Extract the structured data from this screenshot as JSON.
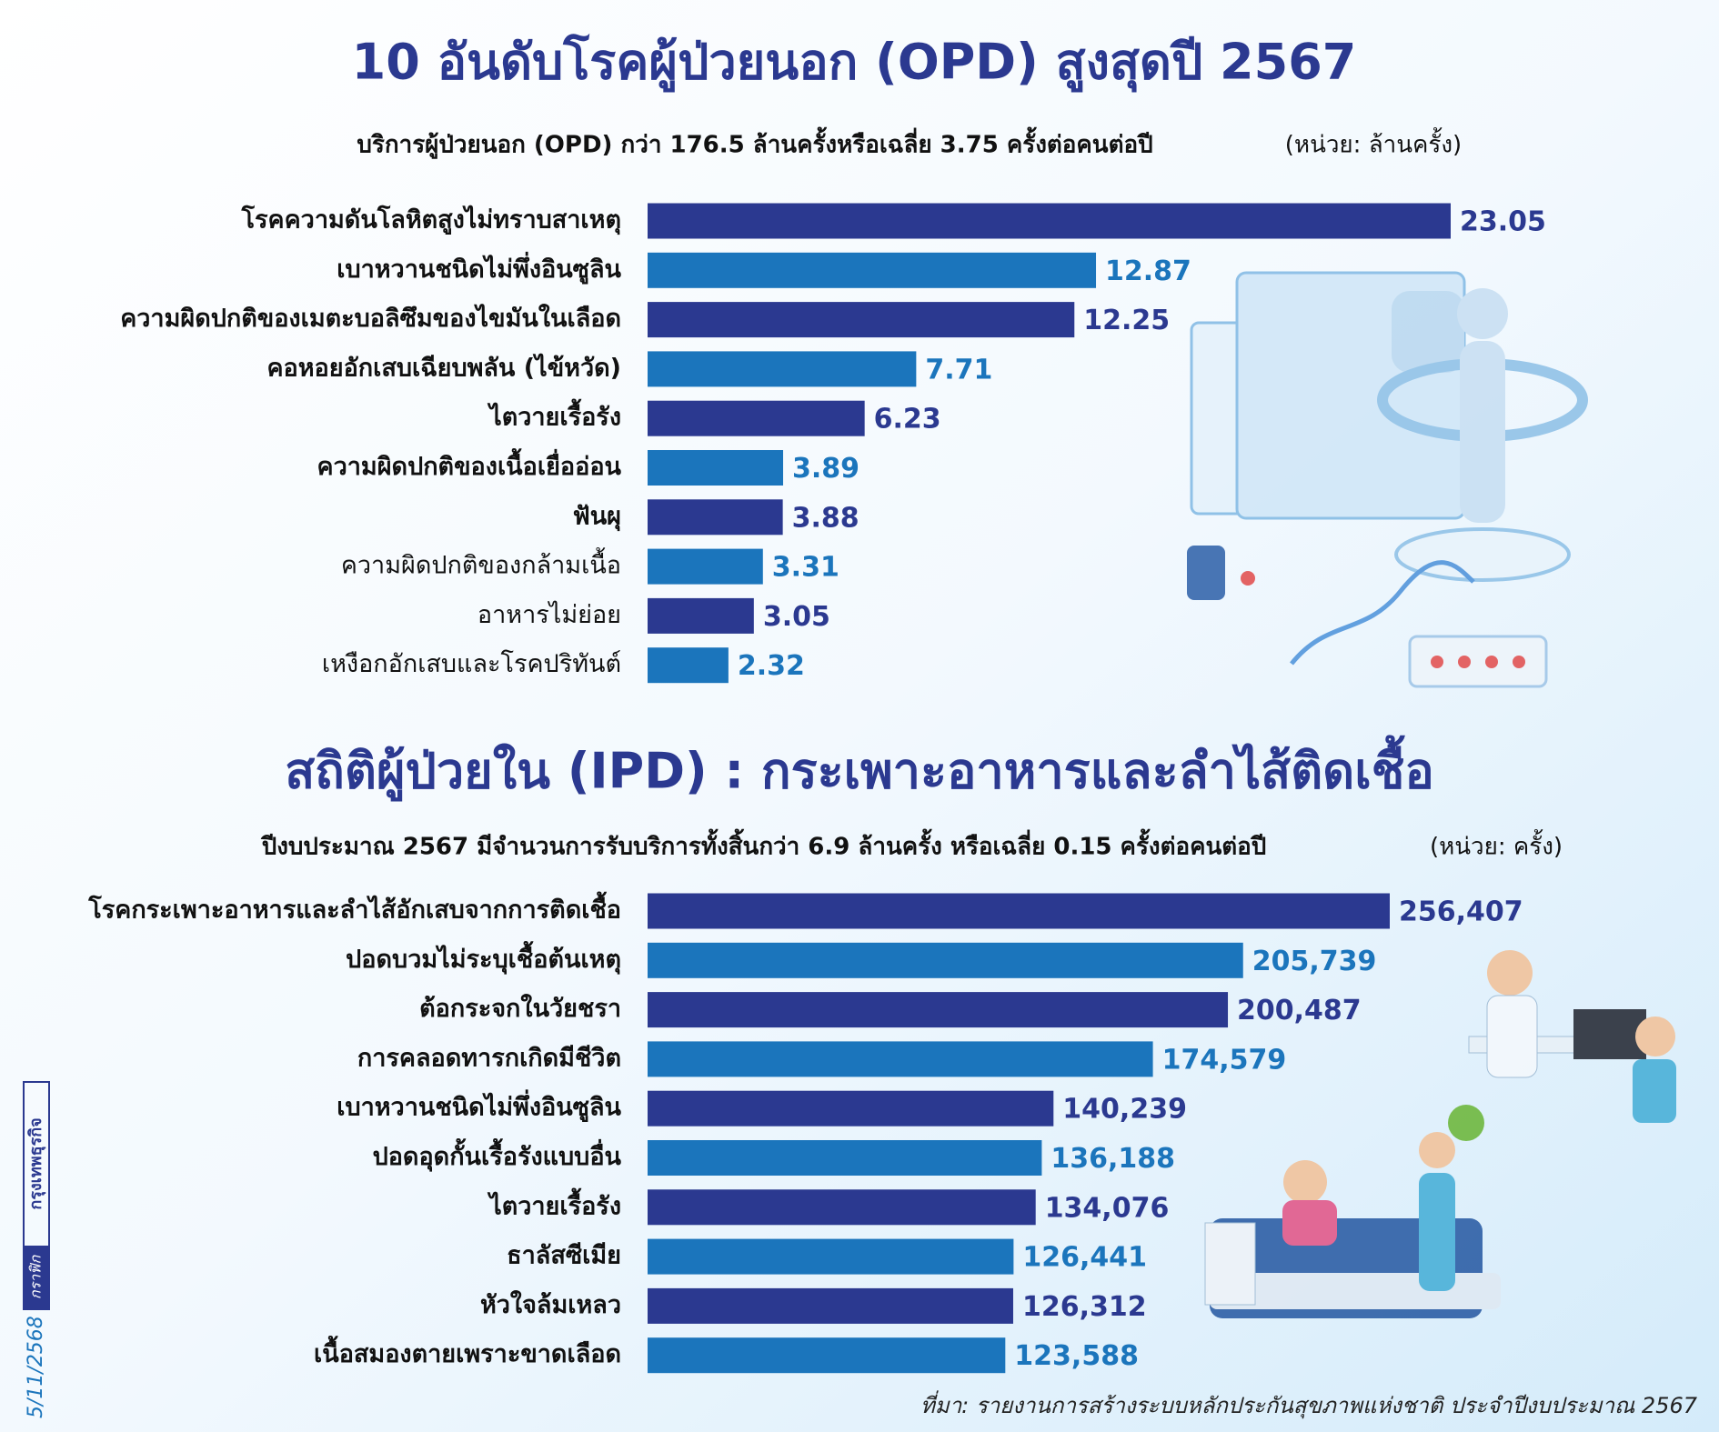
{
  "chart_data": [
    {
      "type": "barh",
      "title": "10 อันดับโรคผู้ป่วยนอก (OPD) สูงสุดปี 2567",
      "subtitle": "บริการผู้ป่วยนอก (OPD) กว่า 176.5 ล้านครั้งหรือเฉลี่ย 3.75 ครั้งต่อคนต่อปี",
      "unit": "(หน่วย: ล้านครั้ง)",
      "categories": [
        "โรคความดันโลหิตสูงไม่ทราบสาเหตุ",
        "เบาหวานชนิดไม่พึ่งอินซูลิน",
        "ความผิดปกติของเมตะบอลิซึมของไขมันในเลือด",
        "คอหอยอักเสบเฉียบพลัน (ไข้หวัด)",
        "ไตวายเรื้อรัง",
        "ความผิดปกติของเนื้อเยื่ออ่อน",
        "ฟันผุ",
        "ความผิดปกติของกล้ามเนื้อ",
        "อาหารไม่ย่อย",
        "เหงือกอักเสบและโรคปริทันต์"
      ],
      "values": [
        23.05,
        12.87,
        12.25,
        7.71,
        6.23,
        3.89,
        3.88,
        3.31,
        3.05,
        2.32
      ],
      "colors": [
        "#2b3990",
        "#1b75bc",
        "#2b3990",
        "#1b75bc",
        "#2b3990",
        "#1b75bc",
        "#2b3990",
        "#1b75bc",
        "#2b3990",
        "#1b75bc"
      ]
    },
    {
      "type": "barh",
      "title": "สถิติผู้ป่วยใน (IPD) : กระเพาะอาหารและลำไส้ติดเชื้อ",
      "subtitle": "ปีงบประมาณ 2567 มีจำนวนการรับบริการทั้งสิ้นกว่า 6.9 ล้านครั้ง หรือเฉลี่ย 0.15 ครั้งต่อคนต่อปี",
      "unit": "(หน่วย: ครั้ง)",
      "categories": [
        "โรคกระเพาะอาหารและลำไส้อักเสบจากการติดเชื้อ",
        "ปอดบวมไม่ระบุเชื้อต้นเหตุ",
        "ต้อกระจกในวัยชรา",
        "การคลอดทารกเกิดมีชีวิต",
        "เบาหวานชนิดไม่พึ่งอินซูลิน",
        "ปอดอุดกั้นเรื้อรังแบบอื่น",
        "ไตวายเรื้อรัง",
        "ธาลัสซีเมีย",
        "หัวใจล้มเหลว",
        "เนื้อสมองตายเพราะขาดเลือด"
      ],
      "values": [
        256407,
        205739,
        200487,
        174579,
        140239,
        136188,
        134076,
        126441,
        126312,
        123588
      ],
      "value_labels": [
        "256,407",
        "205,739",
        "200,487",
        "174,579",
        "140,239",
        "136,188",
        "134,076",
        "126,441",
        "126,312",
        "123,588"
      ],
      "colors": [
        "#2b3990",
        "#1b75bc",
        "#2b3990",
        "#1b75bc",
        "#2b3990",
        "#1b75bc",
        "#2b3990",
        "#1b75bc",
        "#2b3990",
        "#1b75bc"
      ]
    }
  ],
  "footer": {
    "source": "ที่มา: รายงานการสร้างระบบหลักประกันสุขภาพแห่งชาติ ประจำปีงบประมาณ 2567",
    "date": "5/11/2568",
    "credit_label": "กราฟิก",
    "credit": "กรุงเทพธุรกิจ"
  }
}
